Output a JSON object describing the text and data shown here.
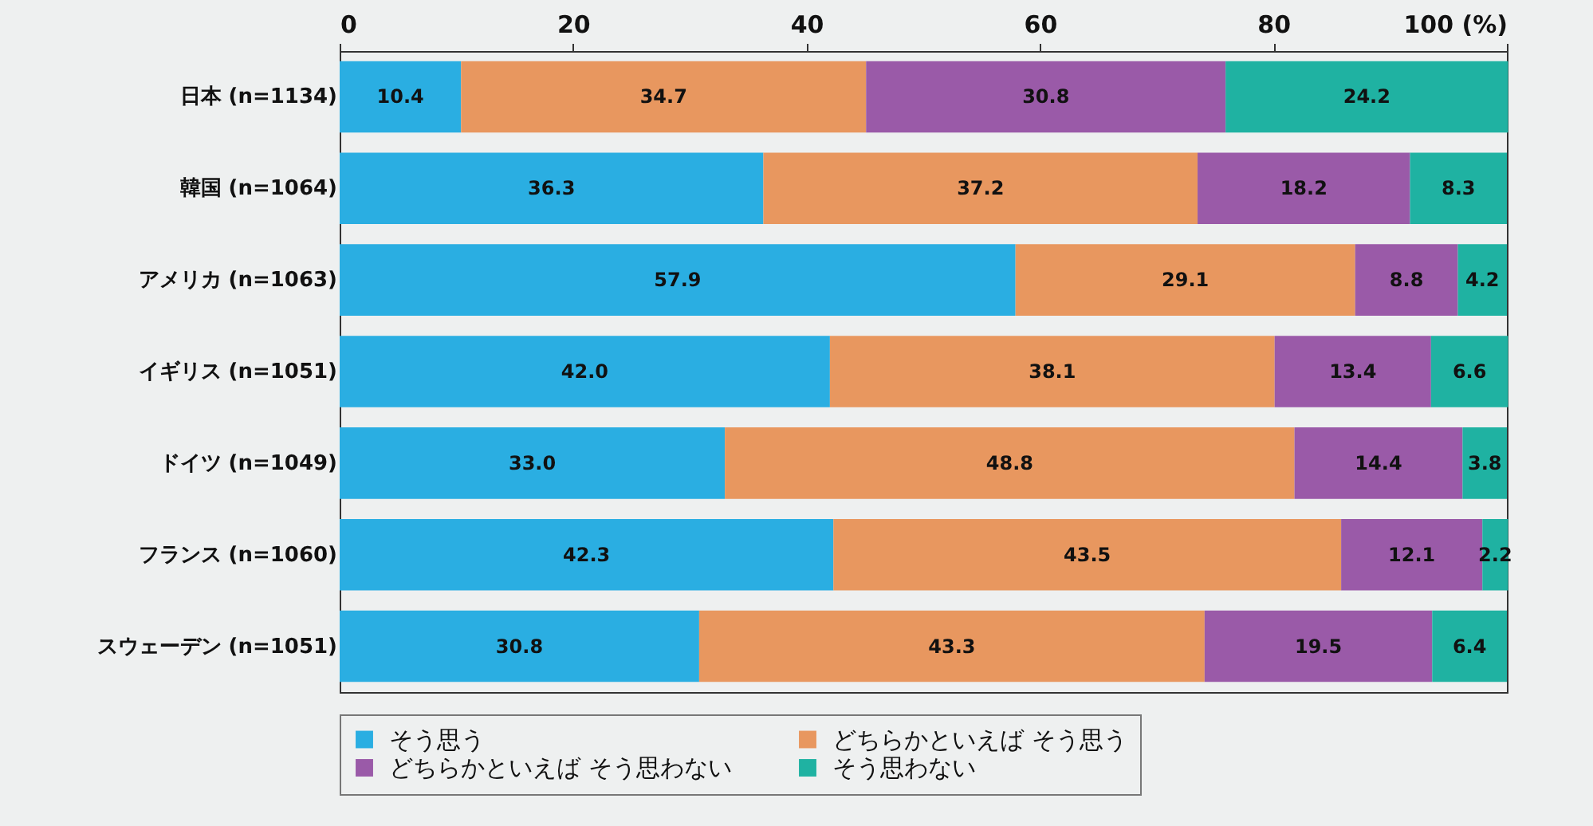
{
  "chart_data": {
    "type": "bar",
    "orientation": "horizontal",
    "stacked": true,
    "legend": "bottom",
    "grid": false,
    "categories": [
      "日本 (n=1134)",
      "韓国 (n=1064)",
      "アメリカ (n=1063)",
      "イギリス (n=1051)",
      "ドイツ (n=1049)",
      "フランス (n=1060)",
      "スウェーデン (n=1051)"
    ],
    "xlim": [
      0,
      100
    ],
    "xticks": [
      0,
      20,
      40,
      60,
      80,
      {
        "value": 100,
        "label": "100 (%)"
      }
    ],
    "series": [
      {
        "name": "そう思う",
        "color": "#2aaee2",
        "values": [
          10.4,
          36.3,
          57.9,
          42.0,
          33.0,
          42.3,
          30.8
        ],
        "value_labels": [
          "10.4",
          "36.3",
          "57.9",
          "42.0",
          "33.0",
          "42.3",
          "30.8"
        ]
      },
      {
        "name": "どちらかといえば そう思う",
        "color": "#e8975f",
        "values": [
          34.7,
          37.2,
          29.1,
          38.1,
          48.8,
          43.5,
          43.3
        ],
        "value_labels": [
          "34.7",
          "37.2",
          "29.1",
          "38.1",
          "48.8",
          "43.5",
          "43.3"
        ]
      },
      {
        "name": "どちらかといえば そう思わない",
        "color": "#9a5aa8",
        "values": [
          30.8,
          18.2,
          8.8,
          13.4,
          14.4,
          12.1,
          19.5
        ],
        "value_labels": [
          "30.8",
          "18.2",
          "8.8",
          "13.4",
          "14.4",
          "12.1",
          "19.5"
        ]
      },
      {
        "name": "そう思わない",
        "color": "#1fb2a2",
        "values": [
          24.2,
          8.3,
          4.2,
          6.6,
          3.8,
          2.2,
          6.4
        ],
        "value_labels": [
          "24.2",
          "8.3",
          "4.2",
          "6.6",
          "3.8",
          "2.2",
          "6.4"
        ]
      }
    ]
  }
}
